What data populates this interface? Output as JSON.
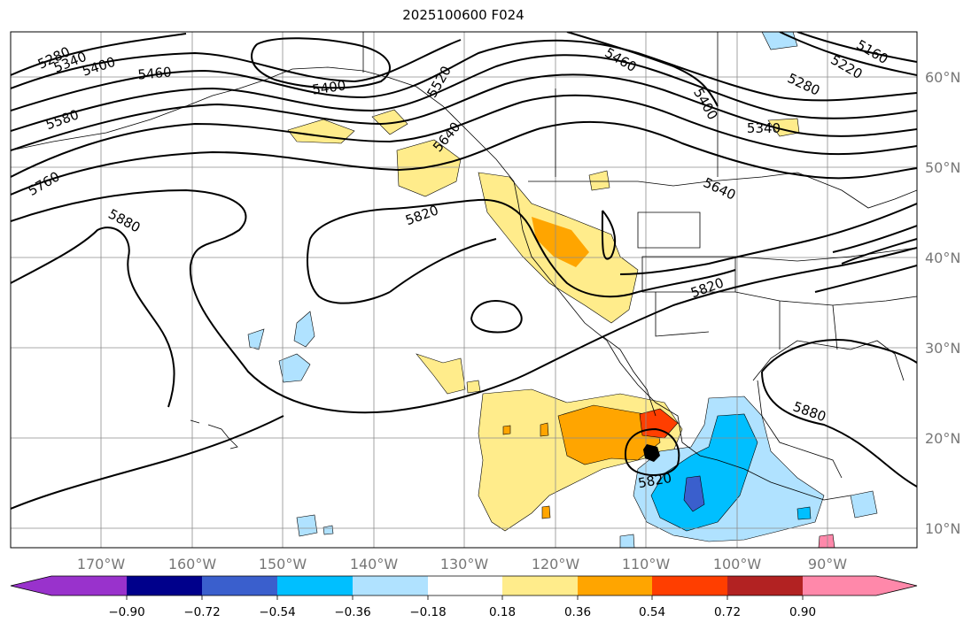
{
  "title": "2025100600 F024",
  "lon_labels": [
    "170°W",
    "160°W",
    "150°W",
    "140°W",
    "130°W",
    "120°W",
    "110°W",
    "100°W",
    "90°W"
  ],
  "lat_labels": [
    "60°N",
    "50°N",
    "40°N",
    "30°N",
    "20°N",
    "10°N"
  ],
  "colorbar": {
    "colors": [
      "#9932cc",
      "#00008b",
      "#3a5fcd",
      "#00bfff",
      "#b0e2ff",
      "#ffffff",
      "#ffec8b",
      "#ffa500",
      "#ff3e00",
      "#b22222",
      "#ff88aa"
    ],
    "ticks": [
      "−0.90",
      "−0.72",
      "−0.54",
      "−0.36",
      "−0.18",
      "0.18",
      "0.36",
      "0.54",
      "0.72",
      "0.90"
    ]
  },
  "contour_labels": [
    {
      "text": "5280",
      "angle": -25
    },
    {
      "text": "5340",
      "angle": -22
    },
    {
      "text": "5400",
      "angle": -18
    },
    {
      "text": "5460",
      "angle": -5
    },
    {
      "text": "5400",
      "angle": -8
    },
    {
      "text": "5580",
      "angle": -20
    },
    {
      "text": "5760",
      "angle": -30
    },
    {
      "text": "5880",
      "angle": 28
    },
    {
      "text": "5820",
      "angle": -20
    },
    {
      "text": "5460",
      "angle": 30
    },
    {
      "text": "5400",
      "angle": 60
    },
    {
      "text": "5220",
      "angle": 30
    },
    {
      "text": "5160",
      "angle": 30
    },
    {
      "text": "5280",
      "angle": 25
    },
    {
      "text": "5340",
      "angle": 0
    },
    {
      "text": "5640",
      "angle": 25
    },
    {
      "text": "5820",
      "angle": -20
    },
    {
      "text": "5880",
      "angle": 20
    },
    {
      "text": "5820",
      "angle": -10
    },
    {
      "text": "5520",
      "angle": -60
    },
    {
      "text": "5640",
      "angle": -50
    }
  ]
}
